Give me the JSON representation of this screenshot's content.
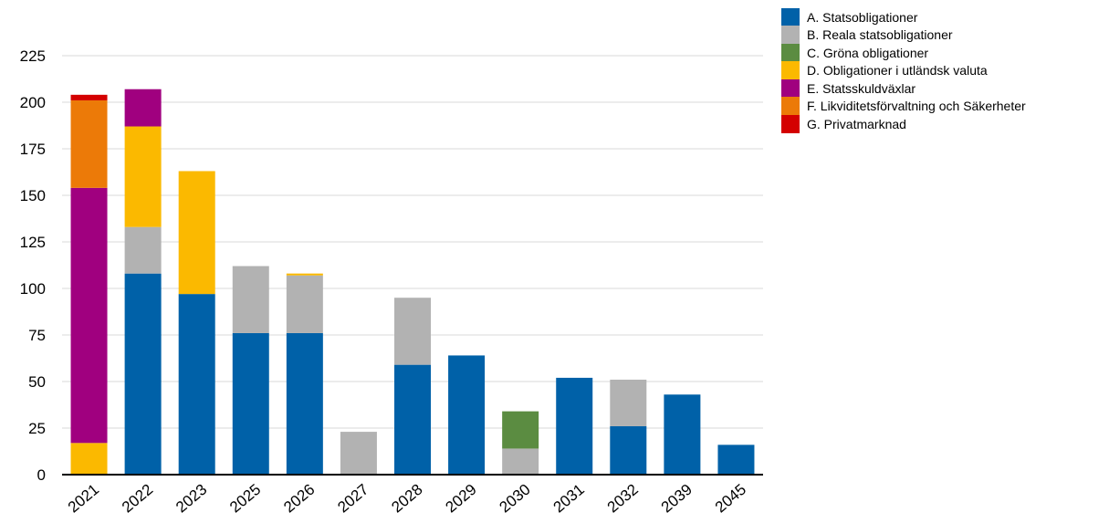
{
  "chart_data": {
    "type": "bar",
    "stacked": true,
    "categories": [
      "2021",
      "2022",
      "2023",
      "2025",
      "2026",
      "2027",
      "2028",
      "2029",
      "2030",
      "2031",
      "2032",
      "2039",
      "2045"
    ],
    "ylim": [
      0,
      235
    ],
    "yticks": [
      0,
      25,
      50,
      75,
      100,
      125,
      150,
      175,
      200,
      225
    ],
    "grid": true,
    "legend_position": "right",
    "series": [
      {
        "name": "A. Statsobligationer",
        "color": "#0061a8",
        "values": [
          0,
          108,
          97,
          76,
          76,
          0,
          59,
          64,
          0,
          52,
          26,
          43,
          16
        ]
      },
      {
        "name": "B. Reala statsobligationer",
        "color": "#b2b2b2",
        "values": [
          0,
          25,
          0,
          36,
          31,
          23,
          36,
          0,
          14,
          0,
          25,
          0,
          0
        ]
      },
      {
        "name": "C. Gröna obligationer",
        "color": "#5b8c41",
        "values": [
          0,
          0,
          0,
          0,
          0,
          0,
          0,
          0,
          20,
          0,
          0,
          0,
          0
        ]
      },
      {
        "name": "D. Obligationer i utländsk valuta",
        "color": "#fbb900",
        "values": [
          17,
          54,
          66,
          0,
          1,
          0,
          0,
          0,
          0,
          0,
          0,
          0,
          0
        ]
      },
      {
        "name": "E. Statsskuldväxlar",
        "color": "#a0007f",
        "values": [
          137,
          20,
          0,
          0,
          0,
          0,
          0,
          0,
          0,
          0,
          0,
          0,
          0
        ]
      },
      {
        "name": "F. Likviditetsförvaltning och Säkerheter",
        "color": "#ec7a08",
        "values": [
          47,
          0,
          0,
          0,
          0,
          0,
          0,
          0,
          0,
          0,
          0,
          0,
          0
        ]
      },
      {
        "name": "G. Privatmarknad",
        "color": "#d40000",
        "values": [
          3,
          0,
          0,
          0,
          0,
          0,
          0,
          0,
          0,
          0,
          0,
          0,
          0
        ]
      }
    ]
  }
}
